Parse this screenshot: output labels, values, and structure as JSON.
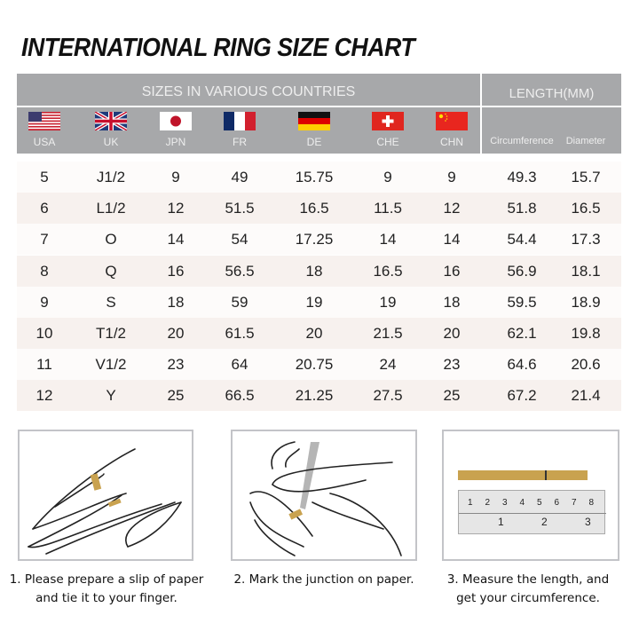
{
  "title": "INTERNATIONAL RING SIZE CHART",
  "header": {
    "sizes_label": "SIZES IN VARIOUS COUNTRIES",
    "length_label": "LENGTH(MM)",
    "countries": [
      {
        "code": "USA",
        "flag": "us-flag"
      },
      {
        "code": "UK",
        "flag": "uk-flag"
      },
      {
        "code": "JPN",
        "flag": "japan-flag"
      },
      {
        "code": "FR",
        "flag": "france-flag"
      },
      {
        "code": "DE",
        "flag": "germany-flag"
      },
      {
        "code": "CHE",
        "flag": "switzerland-flag"
      },
      {
        "code": "CHN",
        "flag": "china-flag"
      }
    ],
    "length_cols": [
      "Circumference",
      "Diameter"
    ]
  },
  "rows": [
    [
      "5",
      "J1/2",
      "9",
      "49",
      "15.75",
      "9",
      "9",
      "49.3",
      "15.7"
    ],
    [
      "6",
      "L1/2",
      "12",
      "51.5",
      "16.5",
      "11.5",
      "12",
      "51.8",
      "16.5"
    ],
    [
      "7",
      "O",
      "14",
      "54",
      "17.25",
      "14",
      "14",
      "54.4",
      "17.3"
    ],
    [
      "8",
      "Q",
      "16",
      "56.5",
      "18",
      "16.5",
      "16",
      "56.9",
      "18.1"
    ],
    [
      "9",
      "S",
      "18",
      "59",
      "19",
      "19",
      "18",
      "59.5",
      "18.9"
    ],
    [
      "10",
      "T1/2",
      "20",
      "61.5",
      "20",
      "21.5",
      "20",
      "62.1",
      "19.8"
    ],
    [
      "11",
      "V1/2",
      "23",
      "64",
      "20.75",
      "24",
      "23",
      "64.6",
      "20.6"
    ],
    [
      "12",
      "Y",
      "25",
      "66.5",
      "21.25",
      "27.5",
      "25",
      "67.2",
      "21.4"
    ]
  ],
  "colors": {
    "header_bg": "#a7a8aa",
    "row_alt": "#f7f1ee",
    "paper": "#c9a24f"
  },
  "steps": [
    {
      "line1": "1. Please prepare a slip of paper",
      "line2": "and tie it to your finger."
    },
    {
      "line1": "2. Mark the junction on paper.",
      "line2": ""
    },
    {
      "line1": "3. Measure the length, and",
      "line2": "get your circumference."
    }
  ],
  "ruler": {
    "top_marks": [
      "1",
      "2",
      "3",
      "4",
      "5",
      "6",
      "7",
      "8"
    ],
    "bottom_marks": [
      "1",
      "2",
      "3"
    ]
  }
}
